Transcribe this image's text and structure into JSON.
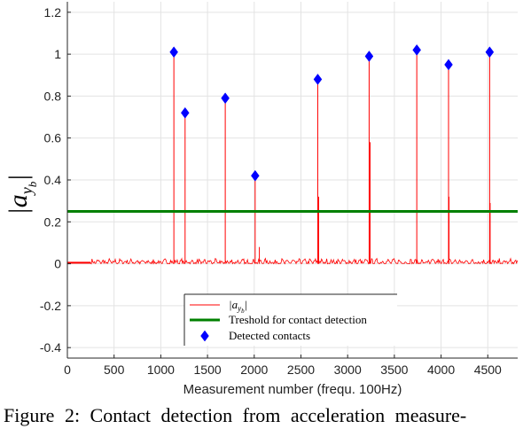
{
  "chart_data": {
    "type": "line",
    "xlabel": "Measurement number (frequ. 100Hz)",
    "ylabel": "|a_yb|",
    "xlim": [
      0,
      4820
    ],
    "ylim": [
      -0.45,
      1.25
    ],
    "xticks": [
      0,
      500,
      1000,
      1500,
      2000,
      2500,
      3000,
      3500,
      4000,
      4500
    ],
    "yticks": [
      -0.4,
      -0.2,
      0,
      0.2,
      0.4,
      0.6,
      0.8,
      1,
      1.2
    ],
    "ytick_labels": [
      "-0.4",
      "-0.2",
      "0",
      "0.2",
      "0.4",
      "0.6",
      "0.8",
      "1",
      "1.2"
    ],
    "grid": true,
    "legend_position": "bottom-center",
    "series": [
      {
        "name": "|a_yb|",
        "kind": "line",
        "color": "#ff0000",
        "baseline_noise": 0.01,
        "spikes": [
          {
            "x": 1140,
            "y": 1.0
          },
          {
            "x": 1260,
            "y": 0.72
          },
          {
            "x": 1690,
            "y": 0.79
          },
          {
            "x": 2010,
            "y": 0.42
          },
          {
            "x": 2055,
            "y": 0.08
          },
          {
            "x": 2680,
            "y": 0.87
          },
          {
            "x": 2690,
            "y": 0.32
          },
          {
            "x": 3230,
            "y": 0.98
          },
          {
            "x": 3240,
            "y": 0.58
          },
          {
            "x": 3740,
            "y": 1.01
          },
          {
            "x": 4080,
            "y": 0.94
          },
          {
            "x": 4085,
            "y": 0.32
          },
          {
            "x": 4520,
            "y": 1.0
          },
          {
            "x": 4525,
            "y": 0.29
          }
        ]
      },
      {
        "name": "Treshold for contact detection",
        "kind": "hline",
        "color": "#008000",
        "y": 0.25
      },
      {
        "name": "Detected contacts",
        "kind": "scatter",
        "marker": "diamond",
        "color": "#0000ff",
        "points": [
          {
            "x": 1140,
            "y": 1.01
          },
          {
            "x": 1260,
            "y": 0.72
          },
          {
            "x": 1690,
            "y": 0.79
          },
          {
            "x": 2010,
            "y": 0.42
          },
          {
            "x": 2680,
            "y": 0.88
          },
          {
            "x": 3230,
            "y": 0.99
          },
          {
            "x": 3740,
            "y": 1.02
          },
          {
            "x": 4080,
            "y": 0.95
          },
          {
            "x": 4520,
            "y": 1.01
          }
        ]
      }
    ],
    "legend": [
      {
        "label_base": "|a",
        "label_sub": "y",
        "label_subsub": "b",
        "label_end": "|",
        "swatch": "red-line"
      },
      {
        "label": "Treshold for contact detection",
        "swatch": "green-line"
      },
      {
        "label": "Detected contacts",
        "swatch": "blue-diamond"
      }
    ]
  },
  "caption": {
    "text": "Figure 2:  Contact detection from acceleration measure-"
  }
}
